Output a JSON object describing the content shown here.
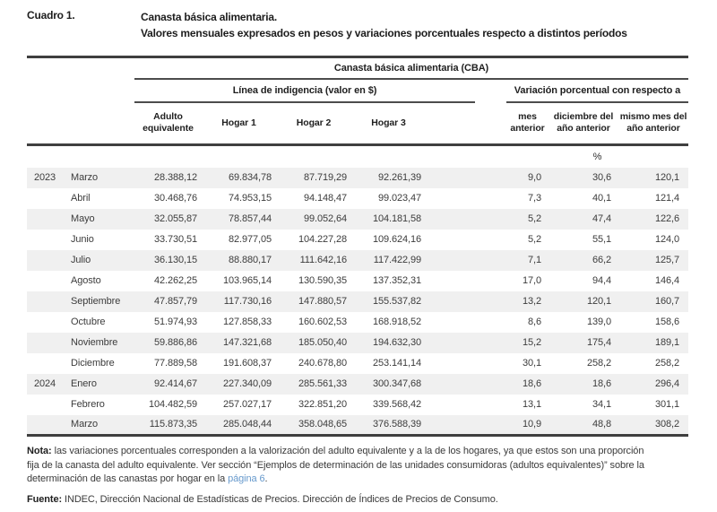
{
  "title": {
    "label": "Cuadro 1.",
    "line1": "Canasta básica alimentaria.",
    "line2": "Valores mensuales expresados en pesos y variaciones porcentuales respecto a distintos períodos"
  },
  "table": {
    "group_header": "Canasta básica alimentaria (CBA)",
    "subgroup_left": "Línea de indigencia (valor en $)",
    "subgroup_right": "Variación porcentual con respecto a",
    "columns": [
      "Adulto equivalente",
      "Hogar 1",
      "Hogar 2",
      "Hogar 3",
      "mes anterior",
      "diciembre del año anterior",
      "mismo mes del año anterior"
    ],
    "unit_row": "%",
    "rows": [
      {
        "year": "2023",
        "month": "Marzo",
        "values": [
          "28.388,12",
          "69.834,78",
          "87.719,29",
          "92.261,39",
          "9,0",
          "30,6",
          "120,1"
        ]
      },
      {
        "year": "",
        "month": "Abril",
        "values": [
          "30.468,76",
          "74.953,15",
          "94.148,47",
          "99.023,47",
          "7,3",
          "40,1",
          "121,4"
        ]
      },
      {
        "year": "",
        "month": "Mayo",
        "values": [
          "32.055,87",
          "78.857,44",
          "99.052,64",
          "104.181,58",
          "5,2",
          "47,4",
          "122,6"
        ]
      },
      {
        "year": "",
        "month": "Junio",
        "values": [
          "33.730,51",
          "82.977,05",
          "104.227,28",
          "109.624,16",
          "5,2",
          "55,1",
          "124,0"
        ]
      },
      {
        "year": "",
        "month": "Julio",
        "values": [
          "36.130,15",
          "88.880,17",
          "111.642,16",
          "117.422,99",
          "7,1",
          "66,2",
          "125,7"
        ]
      },
      {
        "year": "",
        "month": "Agosto",
        "values": [
          "42.262,25",
          "103.965,14",
          "130.590,35",
          "137.352,31",
          "17,0",
          "94,4",
          "146,4"
        ]
      },
      {
        "year": "",
        "month": "Septiembre",
        "values": [
          "47.857,79",
          "117.730,16",
          "147.880,57",
          "155.537,82",
          "13,2",
          "120,1",
          "160,7"
        ]
      },
      {
        "year": "",
        "month": "Octubre",
        "values": [
          "51.974,93",
          "127.858,33",
          "160.602,53",
          "168.918,52",
          "8,6",
          "139,0",
          "158,6"
        ]
      },
      {
        "year": "",
        "month": "Noviembre",
        "values": [
          "59.886,86",
          "147.321,68",
          "185.050,40",
          "194.632,30",
          "15,2",
          "175,4",
          "189,1"
        ]
      },
      {
        "year": "",
        "month": "Diciembre",
        "values": [
          "77.889,58",
          "191.608,37",
          "240.678,80",
          "253.141,14",
          "30,1",
          "258,2",
          "258,2"
        ]
      },
      {
        "year": "2024",
        "month": "Enero",
        "values": [
          "92.414,67",
          "227.340,09",
          "285.561,33",
          "300.347,68",
          "18,6",
          "18,6",
          "296,4"
        ]
      },
      {
        "year": "",
        "month": "Febrero",
        "values": [
          "104.482,59",
          "257.027,17",
          "322.851,20",
          "339.568,42",
          "13,1",
          "34,1",
          "301,1"
        ]
      },
      {
        "year": "",
        "month": "Marzo",
        "values": [
          "115.873,35",
          "285.048,44",
          "358.048,65",
          "376.588,39",
          "10,9",
          "48,8",
          "308,2"
        ]
      }
    ]
  },
  "footer": {
    "nota": {
      "label": "Nota:",
      "line1": "las variaciones porcentuales corresponden a la valorización del adulto equivalente y a la de los hogares, ya que estos son una proporción",
      "line2": "fija de la canasta del adulto equivalente. Ver sección “Ejemplos de determinación de las unidades consumidoras (adultos equivalentes)” sobre la",
      "line3_before_link": "determinación de las canastas por hogar en la ",
      "link": "página 6",
      "line3_after_link": "."
    },
    "fuente": {
      "label": "Fuente:",
      "text": "INDEC, Dirección Nacional de Estadísticas de Precios. Dirección de Índices de Precios de Consumo."
    }
  },
  "colors": {
    "stripe": "#f0f0f0",
    "rule": "#3f3f3f",
    "link": "#6699cc",
    "text": "#3c3c3c"
  }
}
